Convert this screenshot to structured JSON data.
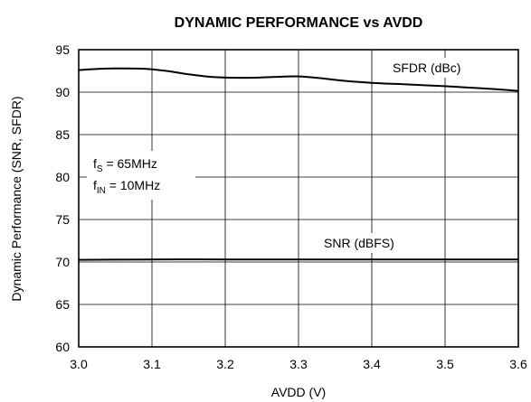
{
  "chart_data": {
    "type": "line",
    "title": "DYNAMIC PERFORMANCE vs AVDD",
    "xlabel": "AVDD (V)",
    "ylabel": "Dynamic Performance (SNR, SFDR)",
    "xlim": [
      3.0,
      3.6
    ],
    "ylim": [
      60,
      95
    ],
    "x_ticks": [
      "3.0",
      "3.1",
      "3.2",
      "3.3",
      "3.4",
      "3.5",
      "3.6"
    ],
    "y_ticks": [
      "60",
      "65",
      "70",
      "75",
      "80",
      "85",
      "90",
      "95"
    ],
    "grid": true,
    "series": [
      {
        "name": "SFDR (dBc)",
        "x": [
          3.0,
          3.03,
          3.06,
          3.09,
          3.12,
          3.15,
          3.18,
          3.21,
          3.24,
          3.27,
          3.3,
          3.33,
          3.36,
          3.4,
          3.45,
          3.5,
          3.55,
          3.6
        ],
        "y": [
          92.6,
          92.75,
          92.8,
          92.75,
          92.5,
          92.1,
          91.8,
          91.7,
          91.7,
          91.8,
          91.85,
          91.65,
          91.35,
          91.1,
          90.9,
          90.7,
          90.45,
          90.15
        ]
      },
      {
        "name": "SNR (dBFS)",
        "x": [
          3.0,
          3.1,
          3.2,
          3.3,
          3.4,
          3.5,
          3.6
        ],
        "y": [
          70.25,
          70.3,
          70.3,
          70.3,
          70.3,
          70.3,
          70.3
        ]
      }
    ],
    "annotations": {
      "fs_main": "f",
      "fs_sub": "S",
      "fs_value": " = 65MHz",
      "fin_main": "f",
      "fin_sub": "IN",
      "fin_value": " = 10MHz"
    }
  }
}
